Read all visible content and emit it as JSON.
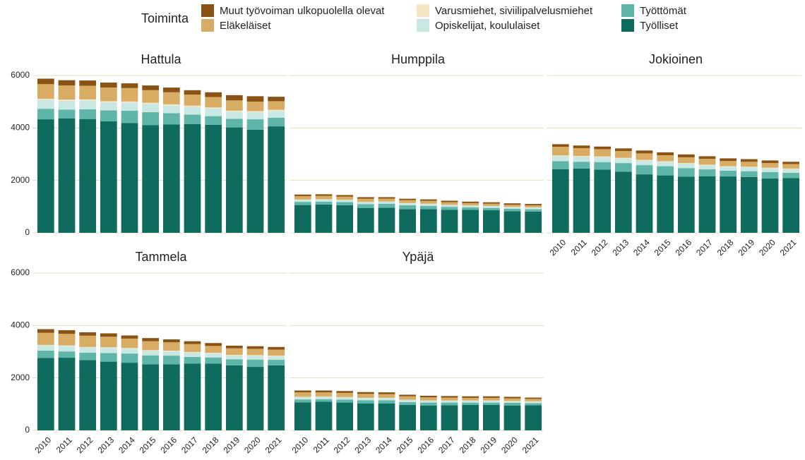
{
  "chart_data": [
    {
      "type": "bar",
      "title": "Hattula",
      "legend_title": "Toiminta",
      "categories": [
        "2010",
        "2011",
        "2012",
        "2013",
        "2014",
        "2015",
        "2016",
        "2017",
        "2018",
        "2019",
        "2020",
        "2021"
      ],
      "ylim": [
        0,
        6000
      ],
      "yticks": [
        0,
        2000,
        4000,
        6000
      ],
      "grid": true,
      "series": [
        {
          "name": "Työlliset",
          "color": "#0e6b5e",
          "values": [
            4330,
            4360,
            4340,
            4250,
            4190,
            4110,
            4130,
            4150,
            4120,
            4020,
            3930,
            4060
          ]
        },
        {
          "name": "Työttömät",
          "color": "#5fb5a8",
          "values": [
            400,
            340,
            370,
            420,
            470,
            490,
            430,
            360,
            330,
            330,
            400,
            330
          ]
        },
        {
          "name": "Opiskelijat, koululaiset",
          "color": "#c9e8e4",
          "values": [
            340,
            340,
            340,
            310,
            310,
            320,
            300,
            300,
            290,
            270,
            270,
            260
          ]
        },
        {
          "name": "Varusmiehet, siviilipalvelusmiehet",
          "color": "#f6e6c4",
          "values": [
            40,
            40,
            40,
            40,
            40,
            40,
            40,
            40,
            40,
            40,
            40,
            40
          ]
        },
        {
          "name": "Eläkeläiset",
          "color": "#d8ac63",
          "values": [
            560,
            540,
            520,
            520,
            510,
            480,
            460,
            420,
            400,
            390,
            360,
            330
          ]
        },
        {
          "name": "Muut työvoiman ulkopuolella olevat",
          "color": "#8a5315",
          "values": [
            210,
            200,
            200,
            190,
            180,
            180,
            180,
            170,
            180,
            200,
            210,
            170
          ]
        }
      ]
    },
    {
      "type": "bar",
      "title": "Humppila",
      "categories": [
        "2010",
        "2011",
        "2012",
        "2013",
        "2014",
        "2015",
        "2016",
        "2017",
        "2018",
        "2019",
        "2020",
        "2021"
      ],
      "ylim": [
        0,
        6000
      ],
      "yticks": [
        0,
        2000,
        4000,
        6000
      ],
      "grid": true,
      "series": [
        {
          "name": "Työlliset",
          "color": "#0e6b5e",
          "values": [
            1060,
            1080,
            1050,
            950,
            960,
            900,
            900,
            880,
            880,
            860,
            820,
            810
          ]
        },
        {
          "name": "Työttömät",
          "color": "#5fb5a8",
          "values": [
            120,
            110,
            120,
            140,
            150,
            150,
            130,
            110,
            90,
            90,
            100,
            90
          ]
        },
        {
          "name": "Opiskelijat, koululaiset",
          "color": "#c9e8e4",
          "values": [
            80,
            80,
            80,
            80,
            75,
            75,
            70,
            70,
            65,
            65,
            60,
            60
          ]
        },
        {
          "name": "Varusmiehet, siviilipalvelusmiehet",
          "color": "#f6e6c4",
          "values": [
            10,
            10,
            10,
            10,
            10,
            10,
            10,
            10,
            10,
            10,
            10,
            10
          ]
        },
        {
          "name": "Eläkeläiset",
          "color": "#d8ac63",
          "values": [
            130,
            130,
            120,
            120,
            110,
            110,
            110,
            100,
            90,
            85,
            80,
            80
          ]
        },
        {
          "name": "Muut työvoiman ulkopuolella olevat",
          "color": "#8a5315",
          "values": [
            60,
            60,
            60,
            60,
            55,
            55,
            55,
            55,
            55,
            55,
            55,
            50
          ]
        }
      ]
    },
    {
      "type": "bar",
      "title": "Jokioinen",
      "categories": [
        "2010",
        "2011",
        "2012",
        "2013",
        "2014",
        "2015",
        "2016",
        "2017",
        "2018",
        "2019",
        "2020",
        "2021"
      ],
      "ylim": [
        0,
        6000
      ],
      "yticks": [
        0,
        2000,
        4000,
        6000
      ],
      "grid": true,
      "series": [
        {
          "name": "Työlliset",
          "color": "#0e6b5e",
          "values": [
            2430,
            2450,
            2410,
            2330,
            2230,
            2190,
            2140,
            2160,
            2150,
            2130,
            2070,
            2090
          ]
        },
        {
          "name": "Työttömät",
          "color": "#5fb5a8",
          "values": [
            300,
            260,
            290,
            330,
            350,
            350,
            330,
            260,
            220,
            220,
            250,
            200
          ]
        },
        {
          "name": "Opiskelijat, koululaiset",
          "color": "#c9e8e4",
          "values": [
            200,
            200,
            190,
            180,
            180,
            170,
            170,
            160,
            150,
            150,
            140,
            140
          ]
        },
        {
          "name": "Varusmiehet, siviilipalvelusmiehet",
          "color": "#f6e6c4",
          "values": [
            20,
            20,
            20,
            20,
            20,
            20,
            20,
            20,
            20,
            20,
            20,
            20
          ]
        },
        {
          "name": "Eläkeläiset",
          "color": "#d8ac63",
          "values": [
            330,
            300,
            280,
            260,
            250,
            230,
            220,
            220,
            200,
            190,
            180,
            170
          ]
        },
        {
          "name": "Muut työvoiman ulkopuolella olevat",
          "color": "#8a5315",
          "values": [
            100,
            100,
            100,
            100,
            110,
            110,
            110,
            100,
            100,
            100,
            100,
            90
          ]
        }
      ]
    },
    {
      "type": "bar",
      "title": "Tammela",
      "categories": [
        "2010",
        "2011",
        "2012",
        "2013",
        "2014",
        "2015",
        "2016",
        "2017",
        "2018",
        "2019",
        "2020",
        "2021"
      ],
      "ylim": [
        0,
        6000
      ],
      "yticks": [
        0,
        2000,
        4000,
        6000
      ],
      "grid": true,
      "series": [
        {
          "name": "Työlliset",
          "color": "#0e6b5e",
          "values": [
            2760,
            2770,
            2680,
            2620,
            2580,
            2520,
            2520,
            2550,
            2550,
            2480,
            2420,
            2480
          ]
        },
        {
          "name": "Työttömät",
          "color": "#5fb5a8",
          "values": [
            280,
            240,
            280,
            330,
            350,
            340,
            330,
            250,
            230,
            230,
            280,
            210
          ]
        },
        {
          "name": "Opiskelijat, koululaiset",
          "color": "#c9e8e4",
          "values": [
            200,
            210,
            200,
            200,
            190,
            180,
            170,
            170,
            160,
            150,
            150,
            140
          ]
        },
        {
          "name": "Varusmiehet, siviilipalvelusmiehet",
          "color": "#f6e6c4",
          "values": [
            20,
            20,
            20,
            20,
            20,
            20,
            20,
            20,
            20,
            20,
            20,
            20
          ]
        },
        {
          "name": "Eläkeläiset",
          "color": "#d8ac63",
          "values": [
            460,
            440,
            430,
            400,
            360,
            340,
            320,
            300,
            260,
            250,
            240,
            230
          ]
        },
        {
          "name": "Muut työvoiman ulkopuolella olevat",
          "color": "#8a5315",
          "values": [
            140,
            140,
            130,
            130,
            120,
            120,
            110,
            110,
            110,
            100,
            100,
            100
          ]
        }
      ]
    },
    {
      "type": "bar",
      "title": "Ypäjä",
      "categories": [
        "2010",
        "2011",
        "2012",
        "2013",
        "2014",
        "2015",
        "2016",
        "2017",
        "2018",
        "2019",
        "2020",
        "2021"
      ],
      "ylim": [
        0,
        6000
      ],
      "yticks": [
        0,
        2000,
        4000,
        6000
      ],
      "grid": true,
      "series": [
        {
          "name": "Työlliset",
          "color": "#0e6b5e",
          "values": [
            1070,
            1090,
            1060,
            1030,
            1030,
            970,
            950,
            960,
            970,
            970,
            950,
            960
          ]
        },
        {
          "name": "Työttömät",
          "color": "#5fb5a8",
          "values": [
            110,
            100,
            110,
            120,
            120,
            110,
            110,
            100,
            90,
            90,
            100,
            80
          ]
        },
        {
          "name": "Opiskelijat, koululaiset",
          "color": "#c9e8e4",
          "values": [
            90,
            90,
            90,
            80,
            80,
            80,
            70,
            70,
            70,
            70,
            60,
            60
          ]
        },
        {
          "name": "Varusmiehet, siviilipalvelusmiehet",
          "color": "#f6e6c4",
          "values": [
            10,
            10,
            10,
            10,
            10,
            10,
            10,
            10,
            10,
            10,
            10,
            10
          ]
        },
        {
          "name": "Eläkeläiset",
          "color": "#d8ac63",
          "values": [
            170,
            160,
            160,
            150,
            140,
            130,
            120,
            110,
            100,
            100,
            100,
            90
          ]
        },
        {
          "name": "Muut työvoiman ulkopuolella olevat",
          "color": "#8a5315",
          "values": [
            70,
            70,
            70,
            70,
            70,
            60,
            60,
            60,
            60,
            60,
            60,
            50
          ]
        }
      ]
    }
  ]
}
